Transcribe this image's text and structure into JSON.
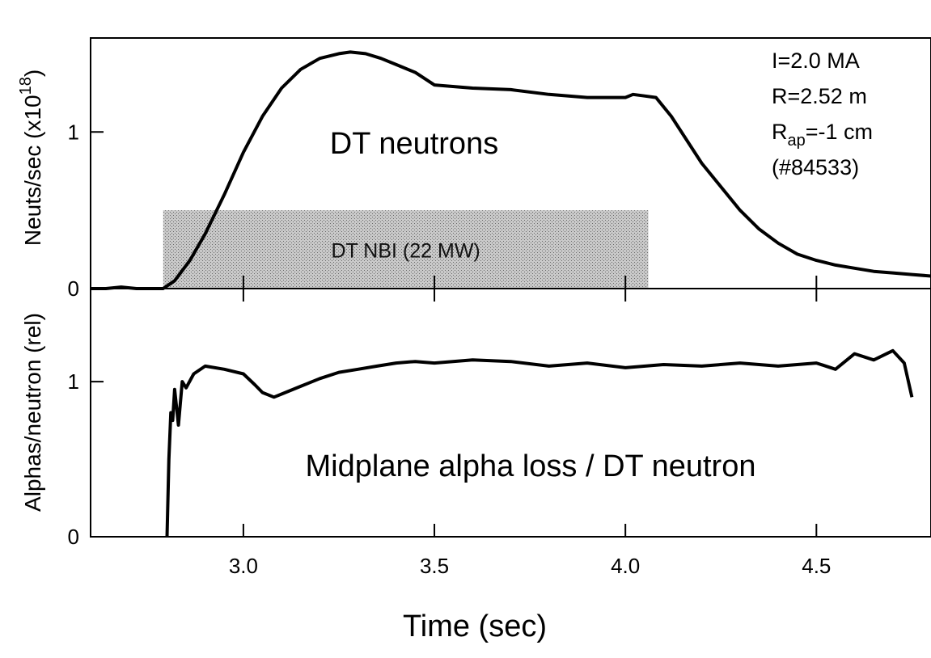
{
  "chart_data": [
    {
      "type": "line",
      "panel": "top",
      "title": "",
      "ylabel": "Neuts/sec (x10",
      "ylabel_exponent": "18",
      "ylabel_close": ")",
      "xlim": [
        2.6,
        4.8
      ],
      "ylim": [
        0,
        1.6
      ],
      "yticks": [
        0,
        1
      ],
      "ytick_labels": [
        "0",
        "1"
      ],
      "annotation": "DT neutrons",
      "shaded_region": {
        "label": "DT NBI (22 MW)",
        "x": [
          2.79,
          4.06
        ],
        "y": [
          0,
          0.5
        ]
      },
      "params": {
        "current": "I=2.0 MA",
        "radius": "R=2.52 m",
        "rap_main": "R",
        "rap_sub": "ap",
        "rap_value": "=-1 cm",
        "shot": "(#84533)"
      },
      "series": [
        {
          "x": [
            2.6,
            2.64,
            2.68,
            2.72,
            2.76,
            2.79,
            2.82,
            2.86,
            2.9,
            2.95,
            3.0,
            3.05,
            3.1,
            3.15,
            3.2,
            3.25,
            3.28,
            3.32,
            3.36,
            3.4,
            3.45,
            3.5,
            3.6,
            3.7,
            3.8,
            3.9,
            4.0,
            4.02,
            4.05,
            4.08,
            4.12,
            4.16,
            4.2,
            4.25,
            4.3,
            4.35,
            4.4,
            4.45,
            4.5,
            4.55,
            4.6,
            4.65,
            4.7,
            4.75,
            4.8
          ],
          "y": [
            0.0,
            0.0,
            0.01,
            0.0,
            0.0,
            0.0,
            0.05,
            0.18,
            0.35,
            0.6,
            0.87,
            1.1,
            1.28,
            1.4,
            1.47,
            1.5,
            1.51,
            1.5,
            1.47,
            1.43,
            1.38,
            1.3,
            1.28,
            1.27,
            1.24,
            1.22,
            1.22,
            1.24,
            1.23,
            1.22,
            1.1,
            0.95,
            0.8,
            0.65,
            0.5,
            0.38,
            0.29,
            0.22,
            0.18,
            0.15,
            0.13,
            0.11,
            0.1,
            0.09,
            0.08
          ]
        }
      ]
    },
    {
      "type": "line",
      "panel": "bottom",
      "title": "",
      "xlabel": "Time (sec)",
      "ylabel": "Alphas/neutron (rel)",
      "xlim": [
        2.6,
        4.8
      ],
      "ylim": [
        0,
        1.6
      ],
      "xticks": [
        3.0,
        3.5,
        4.0,
        4.5
      ],
      "xtick_labels": [
        "3.0",
        "3.5",
        "4.0",
        "4.5"
      ],
      "yticks": [
        0,
        1
      ],
      "ytick_labels": [
        "0",
        "1"
      ],
      "annotation": "Midplane alpha loss / DT neutron",
      "series": [
        {
          "x": [
            2.8,
            2.805,
            2.81,
            2.815,
            2.82,
            2.83,
            2.84,
            2.85,
            2.87,
            2.9,
            2.95,
            3.0,
            3.03,
            3.05,
            3.08,
            3.1,
            3.15,
            3.2,
            3.25,
            3.3,
            3.35,
            3.4,
            3.45,
            3.5,
            3.6,
            3.7,
            3.8,
            3.9,
            4.0,
            4.1,
            4.2,
            4.3,
            4.4,
            4.5,
            4.55,
            4.6,
            4.65,
            4.7,
            4.73,
            4.75
          ],
          "y": [
            0.0,
            0.5,
            0.8,
            0.75,
            0.95,
            0.72,
            1.0,
            0.96,
            1.05,
            1.1,
            1.08,
            1.05,
            0.98,
            0.93,
            0.9,
            0.92,
            0.97,
            1.02,
            1.06,
            1.08,
            1.1,
            1.12,
            1.13,
            1.12,
            1.14,
            1.13,
            1.1,
            1.12,
            1.09,
            1.11,
            1.1,
            1.12,
            1.1,
            1.12,
            1.08,
            1.18,
            1.14,
            1.2,
            1.12,
            0.9
          ]
        }
      ]
    }
  ]
}
